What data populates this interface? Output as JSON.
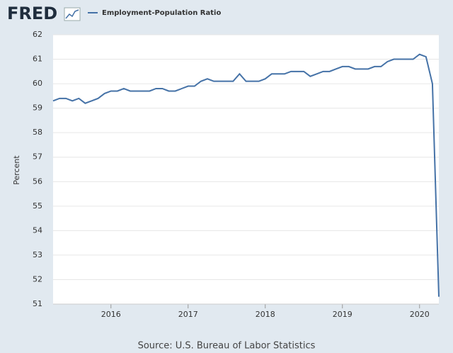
{
  "logo": "FRED",
  "chart_data": {
    "type": "line",
    "y_label": "Percent",
    "source": "Source: U.S. Bureau of Labor Statistics",
    "x": [
      "2015-04",
      "2015-05",
      "2015-06",
      "2015-07",
      "2015-08",
      "2015-09",
      "2015-10",
      "2015-11",
      "2015-12",
      "2016-01",
      "2016-02",
      "2016-03",
      "2016-04",
      "2016-05",
      "2016-06",
      "2016-07",
      "2016-08",
      "2016-09",
      "2016-10",
      "2016-11",
      "2016-12",
      "2017-01",
      "2017-02",
      "2017-03",
      "2017-04",
      "2017-05",
      "2017-06",
      "2017-07",
      "2017-08",
      "2017-09",
      "2017-10",
      "2017-11",
      "2017-12",
      "2018-01",
      "2018-02",
      "2018-03",
      "2018-04",
      "2018-05",
      "2018-06",
      "2018-07",
      "2018-08",
      "2018-09",
      "2018-10",
      "2018-11",
      "2018-12",
      "2019-01",
      "2019-02",
      "2019-03",
      "2019-04",
      "2019-05",
      "2019-06",
      "2019-07",
      "2019-08",
      "2019-09",
      "2019-10",
      "2019-11",
      "2019-12",
      "2020-01",
      "2020-02",
      "2020-03",
      "2020-04"
    ],
    "series": [
      {
        "name": "Employment-Population Ratio",
        "color": "#4572a7",
        "values": [
          59.3,
          59.4,
          59.4,
          59.3,
          59.4,
          59.2,
          59.3,
          59.4,
          59.6,
          59.7,
          59.7,
          59.8,
          59.7,
          59.7,
          59.7,
          59.7,
          59.8,
          59.8,
          59.7,
          59.7,
          59.8,
          59.9,
          59.9,
          60.1,
          60.2,
          60.1,
          60.1,
          60.1,
          60.1,
          60.4,
          60.1,
          60.1,
          60.1,
          60.2,
          60.4,
          60.4,
          60.4,
          60.5,
          60.5,
          60.5,
          60.3,
          60.4,
          60.5,
          60.5,
          60.6,
          60.7,
          60.7,
          60.6,
          60.6,
          60.6,
          60.7,
          60.7,
          60.9,
          61.0,
          61.0,
          61.0,
          61.0,
          61.2,
          61.1,
          60.0,
          51.3
        ]
      }
    ],
    "xlim": [
      "2015-04",
      "2020-04"
    ],
    "xticks": [
      {
        "value": "2016-01",
        "label": "2016"
      },
      {
        "value": "2017-01",
        "label": "2017"
      },
      {
        "value": "2018-01",
        "label": "2018"
      },
      {
        "value": "2019-01",
        "label": "2019"
      },
      {
        "value": "2020-01",
        "label": "2020"
      }
    ],
    "ylim": [
      51,
      62
    ],
    "yticks": [
      51,
      52,
      53,
      54,
      55,
      56,
      57,
      58,
      59,
      60,
      61,
      62
    ],
    "grid": true
  }
}
